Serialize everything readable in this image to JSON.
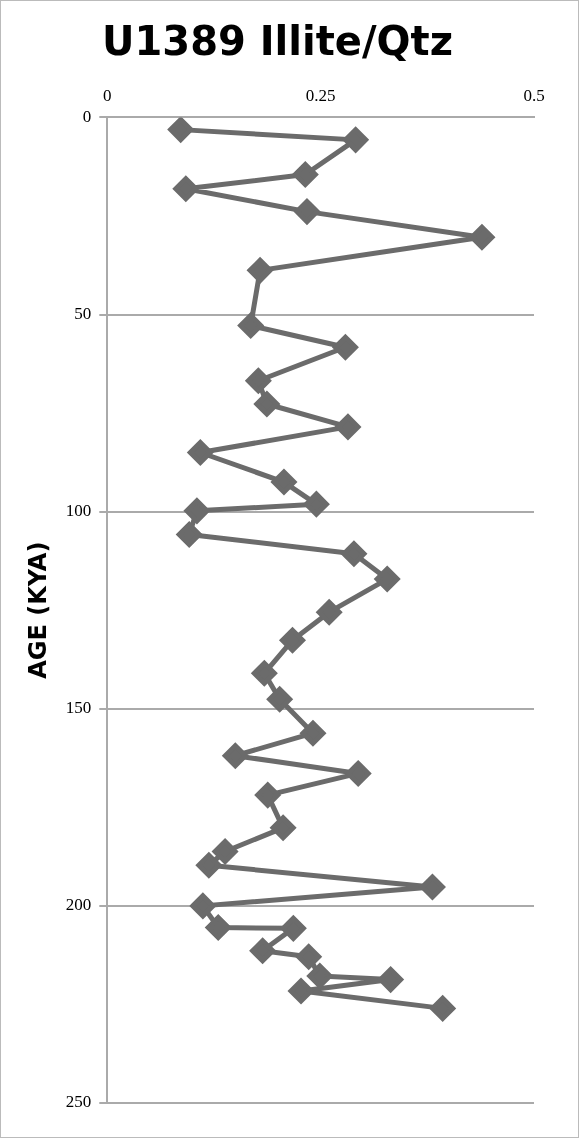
{
  "chart_data": {
    "type": "line",
    "title": "U1389 Illite/Qtz",
    "ylabel": "AGE (KYA)",
    "series": [
      {
        "color": "#6b6b6b",
        "x": [
          0.086,
          0.291,
          0.232,
          0.092,
          0.234,
          0.439,
          0.179,
          0.168,
          0.279,
          0.177,
          0.187,
          0.282,
          0.109,
          0.207,
          0.245,
          0.105,
          0.096,
          0.289,
          0.328,
          0.26,
          0.217,
          0.184,
          0.202,
          0.241,
          0.15,
          0.294,
          0.188,
          0.206,
          0.138,
          0.119,
          0.381,
          0.112,
          0.13,
          0.218,
          0.182,
          0.236,
          0.249,
          0.332,
          0.227,
          0.393
        ],
        "values": [
          3.1,
          5.7,
          14.5,
          18.1,
          23.9,
          30.4,
          38.8,
          52.8,
          58.3,
          66.8,
          72.7,
          78.5,
          85.0,
          92.5,
          98.1,
          99.8,
          105.8,
          110.7,
          117.1,
          125.5,
          132.6,
          141.0,
          147.6,
          156.2,
          161.9,
          166.4,
          171.9,
          180.2,
          186.2,
          189.7,
          195.2,
          200.0,
          205.5,
          205.7,
          211.4,
          212.9,
          217.8,
          218.7,
          221.6,
          226.0
        ]
      }
    ],
    "xlim": [
      0,
      0.5
    ],
    "xticks": [
      0,
      0.25,
      0.5
    ],
    "ylim": [
      250,
      0
    ],
    "yticks": [
      0,
      50,
      100,
      150,
      200,
      250
    ],
    "grid": "y",
    "legend": false,
    "marker": "diamond",
    "line_style": "solid"
  }
}
